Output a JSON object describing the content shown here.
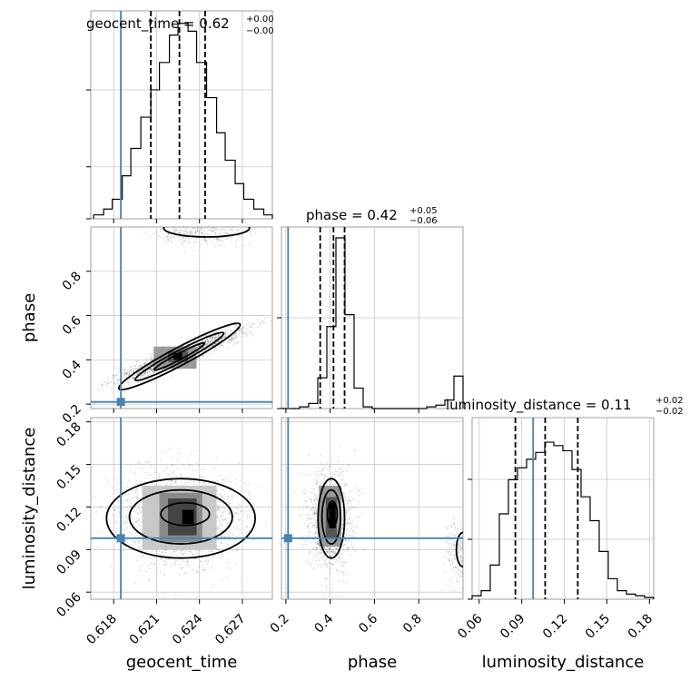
{
  "chart_data": {
    "type": "corner",
    "parameters": [
      "geocent_time",
      "phase",
      "luminosity_distance"
    ],
    "truths": {
      "geocent_time": 0.6185,
      "phase": 0.21,
      "luminosity_distance": 0.098
    },
    "truth_color": "#4682b4",
    "panels": {
      "geocent_time_hist": {
        "title": {
          "label": "geocent_time = 0.62",
          "plus": "+0.00",
          "minus": "−0.00"
        },
        "range": [
          0.6164,
          0.6291
        ],
        "quantiles": [
          0.6206,
          0.6226,
          0.6244
        ],
        "bins": [
          0.6166,
          0.6173,
          0.6179,
          0.6186,
          0.6192,
          0.6199,
          0.6206,
          0.6212,
          0.6219,
          0.6225,
          0.6232,
          0.6238,
          0.6245,
          0.6252,
          0.6258,
          0.6265,
          0.6271,
          0.6278,
          0.6285,
          0.6291
        ],
        "counts": [
          0.02,
          0.05,
          0.1,
          0.22,
          0.36,
          0.52,
          0.66,
          0.8,
          0.94,
          1.0,
          0.96,
          0.8,
          0.62,
          0.44,
          0.3,
          0.18,
          0.1,
          0.05,
          0.02
        ],
        "x_ticks": [
          "0.618",
          "0.621",
          "0.624",
          "0.627"
        ],
        "x_tick_values": [
          0.618,
          0.621,
          0.624,
          0.627
        ]
      },
      "phase_hist": {
        "title": {
          "label": "phase = 0.42",
          "plus": "+0.05",
          "minus": "−0.06"
        },
        "range": [
          0.18,
          1.0
        ],
        "quantiles": [
          0.355,
          0.415,
          0.465
        ],
        "bins": [
          0.18,
          0.221,
          0.262,
          0.303,
          0.344,
          0.385,
          0.426,
          0.467,
          0.508,
          0.549,
          0.59,
          0.631,
          0.672,
          0.713,
          0.754,
          0.795,
          0.836,
          0.877,
          0.918,
          0.959,
          1.0
        ],
        "counts": [
          0.0,
          0.0,
          0.01,
          0.03,
          0.18,
          0.48,
          1.0,
          0.55,
          0.12,
          0.01,
          0.0,
          0.0,
          0.0,
          0.0,
          0.0,
          0.0,
          0.01,
          0.02,
          0.05,
          0.19
        ],
        "x_ticks": [
          "0.2",
          "0.4",
          "0.6",
          "0.8"
        ],
        "x_tick_values": [
          0.2,
          0.4,
          0.6,
          0.8
        ]
      },
      "luminosity_distance_hist": {
        "title": {
          "label": "luminosity_distance = 0.11",
          "plus": "+0.02",
          "minus": "−0.02"
        },
        "range": [
          0.055,
          0.183
        ],
        "quantiles": [
          0.0855,
          0.1065,
          0.1295
        ],
        "bins": [
          0.055,
          0.0614,
          0.0678,
          0.0742,
          0.0806,
          0.087,
          0.0934,
          0.0998,
          0.1062,
          0.1126,
          0.119,
          0.1254,
          0.1318,
          0.1382,
          0.1446,
          0.151,
          0.1574,
          0.1638,
          0.1702,
          0.1766,
          0.183
        ],
        "counts": [
          0.02,
          0.05,
          0.2,
          0.5,
          0.7,
          0.77,
          0.82,
          0.86,
          0.92,
          0.9,
          0.87,
          0.76,
          0.6,
          0.46,
          0.28,
          0.12,
          0.05,
          0.03,
          0.02,
          0.01
        ],
        "x_ticks": [
          "0.06",
          "0.09",
          "0.12",
          "0.15",
          "0.18"
        ],
        "x_tick_values": [
          0.06,
          0.09,
          0.12,
          0.15,
          0.18
        ]
      },
      "phase_vs_geocent_time": {
        "x_range": [
          0.6164,
          0.6291
        ],
        "y_range": [
          0.18,
          1.0
        ],
        "y_ticks": [
          "0.2",
          "0.4",
          "0.6",
          "0.8"
        ],
        "y_tick_values": [
          0.2,
          0.4,
          0.6,
          0.8
        ]
      },
      "luminosity_distance_vs_geocent_time": {
        "x_range": [
          0.6164,
          0.6291
        ],
        "y_range": [
          0.055,
          0.183
        ],
        "y_ticks": [
          "0.06",
          "0.09",
          "0.12",
          "0.15",
          "0.18"
        ],
        "y_tick_values": [
          0.06,
          0.09,
          0.12,
          0.15,
          0.18
        ]
      },
      "luminosity_distance_vs_phase": {
        "x_range": [
          0.18,
          1.0
        ],
        "y_range": [
          0.055,
          0.183
        ]
      }
    },
    "axis_labels": {
      "x": [
        "geocent_time",
        "phase",
        "luminosity_distance"
      ],
      "y": [
        "phase",
        "luminosity_distance"
      ]
    },
    "grid": true
  }
}
